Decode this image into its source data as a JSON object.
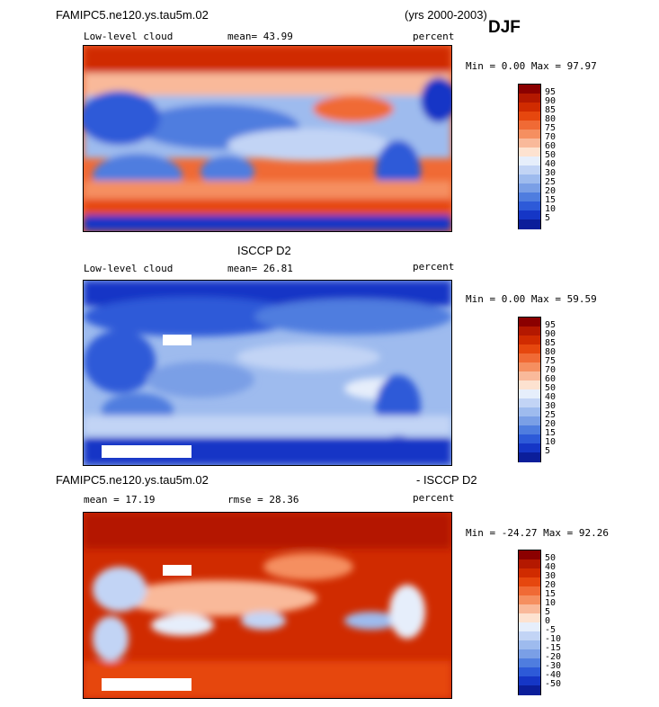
{
  "header": {
    "case_name": "FAMIPC5.ne120.ys.tau5m.02",
    "years": "(yrs 2000-2003)",
    "season": "DJF"
  },
  "panels": [
    {
      "title": "",
      "left_label": "Low-level cloud",
      "mean_text": "mean=  43.99",
      "rmse_text": "",
      "units": "percent",
      "minmax": "Min =   0.00 Max =  97.97",
      "colorbar_labels": [
        "95",
        "90",
        "85",
        "80",
        "75",
        "70",
        "60",
        "50",
        "40",
        "30",
        "25",
        "20",
        "15",
        "10",
        "5"
      ],
      "colorbar_colors": [
        "#8b0000",
        "#b41800",
        "#d02b00",
        "#e6470e",
        "#f06a35",
        "#f58f60",
        "#f9b99a",
        "#fde2d0",
        "#e6eefb",
        "#c2d4f5",
        "#9ebbee",
        "#7a9fe6",
        "#4f7ddf",
        "#2d5ad8",
        "#1536c6",
        "#0b1e9a"
      ]
    },
    {
      "title": "ISCCP D2",
      "left_label": "Low-level cloud",
      "mean_text": "mean=  26.81",
      "rmse_text": "",
      "units": "percent",
      "minmax": "Min =   0.00 Max =  59.59",
      "colorbar_labels": [
        "95",
        "90",
        "85",
        "80",
        "75",
        "70",
        "60",
        "50",
        "40",
        "30",
        "25",
        "20",
        "15",
        "10",
        "5"
      ],
      "colorbar_colors": [
        "#8b0000",
        "#b41800",
        "#d02b00",
        "#e6470e",
        "#f06a35",
        "#f58f60",
        "#f9b99a",
        "#fde2d0",
        "#e6eefb",
        "#c2d4f5",
        "#9ebbee",
        "#7a9fe6",
        "#4f7ddf",
        "#2d5ad8",
        "#1536c6",
        "#0b1e9a"
      ]
    },
    {
      "title_left": "FAMIPC5.ne120.ys.tau5m.02",
      "title_right": "- ISCCP D2",
      "left_label": "mean =  17.19",
      "rmse_text": "rmse =  28.36",
      "units": "percent",
      "minmax": "Min = -24.27 Max =  92.26",
      "colorbar_labels": [
        "50",
        "40",
        "30",
        "20",
        "15",
        "10",
        "5",
        "0",
        "-5",
        "-10",
        "-15",
        "-20",
        "-30",
        "-40",
        "-50"
      ],
      "colorbar_colors": [
        "#8b0000",
        "#b41800",
        "#d02b00",
        "#e6470e",
        "#f06a35",
        "#f58f60",
        "#f9b99a",
        "#fde2d0",
        "#e6eefb",
        "#c2d4f5",
        "#9ebbee",
        "#7a9fe6",
        "#4f7ddf",
        "#2d5ad8",
        "#1536c6",
        "#0b1e9a"
      ]
    }
  ],
  "chart_data": [
    {
      "type": "heatmap",
      "title": "FAMIPC5.ne120.ys.tau5m.02 (yrs 2000-2003) DJF",
      "variable": "Low-level cloud",
      "units": "percent",
      "mean": 43.99,
      "min": 0.0,
      "max": 97.97,
      "levels": [
        5,
        10,
        15,
        20,
        25,
        30,
        40,
        50,
        60,
        70,
        75,
        80,
        85,
        90,
        95
      ]
    },
    {
      "type": "heatmap",
      "title": "ISCCP D2",
      "variable": "Low-level cloud",
      "units": "percent",
      "mean": 26.81,
      "min": 0.0,
      "max": 59.59,
      "levels": [
        5,
        10,
        15,
        20,
        25,
        30,
        40,
        50,
        60,
        70,
        75,
        80,
        85,
        90,
        95
      ]
    },
    {
      "type": "heatmap",
      "title": "FAMIPC5.ne120.ys.tau5m.02 - ISCCP D2",
      "units": "percent",
      "mean": 17.19,
      "rmse": 28.36,
      "min": -24.27,
      "max": 92.26,
      "levels": [
        -50,
        -40,
        -30,
        -20,
        -15,
        -10,
        -5,
        0,
        5,
        10,
        15,
        20,
        30,
        40,
        50
      ]
    }
  ]
}
